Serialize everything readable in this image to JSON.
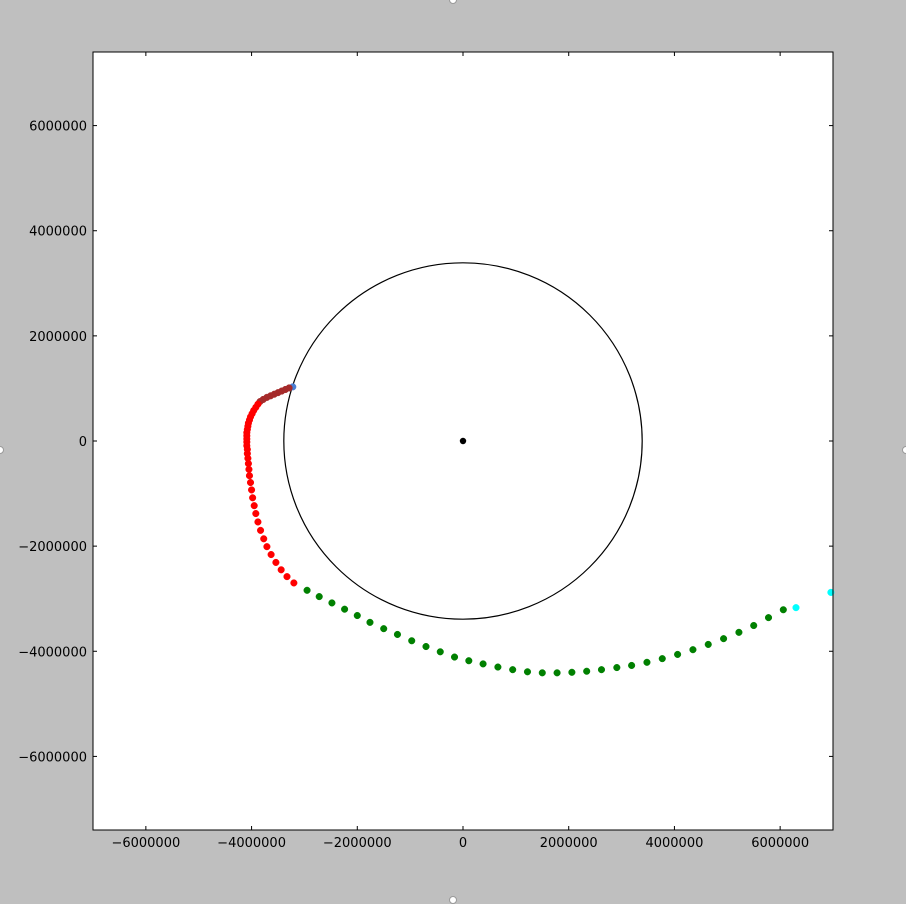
{
  "chart_data": {
    "type": "scatter",
    "xlim": [
      -7000000,
      7000000
    ],
    "ylim": [
      -7400000,
      7400000
    ],
    "xticks": [
      -6000000,
      -4000000,
      -2000000,
      0,
      2000000,
      4000000,
      6000000
    ],
    "yticks": [
      -6000000,
      -4000000,
      -2000000,
      0,
      2000000,
      4000000,
      6000000
    ],
    "xtick_labels": [
      "−6000000",
      "−4000000",
      "−2000000",
      "0",
      "2000000",
      "4000000",
      "6000000"
    ],
    "ytick_labels": [
      "−6000000",
      "−4000000",
      "−2000000",
      "0",
      "2000000",
      "4000000",
      "6000000"
    ],
    "grid": false,
    "circle": {
      "cx": 0,
      "cy": 0,
      "r": 3390000,
      "color": "#000000"
    },
    "center_point": {
      "x": 0,
      "y": 0,
      "color": "#000000"
    },
    "series": [
      {
        "color": "#4a7fd4",
        "points": [
          [
            -3220000,
            1030000
          ]
        ]
      },
      {
        "color": "#a52a2a",
        "points": [
          [
            -3290000,
            1010000
          ],
          [
            -3360000,
            980000
          ],
          [
            -3430000,
            950000
          ],
          [
            -3500000,
            920000
          ],
          [
            -3570000,
            890000
          ],
          [
            -3640000,
            860000
          ],
          [
            -3710000,
            830000
          ],
          [
            -3780000,
            790000
          ],
          [
            -3840000,
            750000
          ]
        ]
      },
      {
        "color": "#ff0000",
        "points": [
          [
            -3880000,
            700000
          ],
          [
            -3920000,
            640000
          ],
          [
            -3960000,
            580000
          ],
          [
            -3990000,
            520000
          ],
          [
            -4020000,
            460000
          ],
          [
            -4040000,
            400000
          ],
          [
            -4060000,
            340000
          ],
          [
            -4070000,
            280000
          ],
          [
            -4080000,
            220000
          ],
          [
            -4090000,
            160000
          ],
          [
            -4090000,
            100000
          ],
          [
            -4090000,
            40000
          ],
          [
            -4090000,
            -20000
          ],
          [
            -4090000,
            -90000
          ],
          [
            -4080000,
            -160000
          ],
          [
            -4080000,
            -240000
          ],
          [
            -4070000,
            -330000
          ],
          [
            -4060000,
            -430000
          ],
          [
            -4050000,
            -540000
          ],
          [
            -4040000,
            -660000
          ],
          [
            -4020000,
            -790000
          ],
          [
            -4000000,
            -930000
          ],
          [
            -3980000,
            -1080000
          ],
          [
            -3950000,
            -1230000
          ],
          [
            -3920000,
            -1380000
          ],
          [
            -3880000,
            -1540000
          ],
          [
            -3830000,
            -1700000
          ],
          [
            -3770000,
            -1860000
          ],
          [
            -3710000,
            -2010000
          ],
          [
            -3630000,
            -2160000
          ],
          [
            -3540000,
            -2310000
          ],
          [
            -3440000,
            -2450000
          ],
          [
            -3330000,
            -2580000
          ],
          [
            -3200000,
            -2700000
          ]
        ]
      },
      {
        "color": "#008000",
        "points": [
          [
            -2950000,
            -2840000
          ],
          [
            -2720000,
            -2960000
          ],
          [
            -2480000,
            -3080000
          ],
          [
            -2240000,
            -3200000
          ],
          [
            -2000000,
            -3320000
          ],
          [
            -1760000,
            -3450000
          ],
          [
            -1500000,
            -3570000
          ],
          [
            -1240000,
            -3680000
          ],
          [
            -970000,
            -3800000
          ],
          [
            -700000,
            -3910000
          ],
          [
            -430000,
            -4010000
          ],
          [
            -160000,
            -4110000
          ],
          [
            110000,
            -4180000
          ],
          [
            380000,
            -4240000
          ],
          [
            660000,
            -4300000
          ],
          [
            940000,
            -4350000
          ],
          [
            1220000,
            -4390000
          ],
          [
            1500000,
            -4410000
          ],
          [
            1780000,
            -4410000
          ],
          [
            2060000,
            -4400000
          ],
          [
            2340000,
            -4380000
          ],
          [
            2620000,
            -4350000
          ],
          [
            2910000,
            -4310000
          ],
          [
            3190000,
            -4270000
          ],
          [
            3480000,
            -4210000
          ],
          [
            3770000,
            -4140000
          ],
          [
            4060000,
            -4060000
          ],
          [
            4350000,
            -3970000
          ],
          [
            4640000,
            -3870000
          ],
          [
            4930000,
            -3760000
          ],
          [
            5220000,
            -3640000
          ],
          [
            5500000,
            -3510000
          ],
          [
            5780000,
            -3360000
          ],
          [
            6060000,
            -3210000
          ]
        ]
      },
      {
        "color": "#00ffff",
        "points": [
          [
            6300000,
            -3170000
          ],
          [
            6960000,
            -2880000
          ]
        ]
      }
    ]
  }
}
